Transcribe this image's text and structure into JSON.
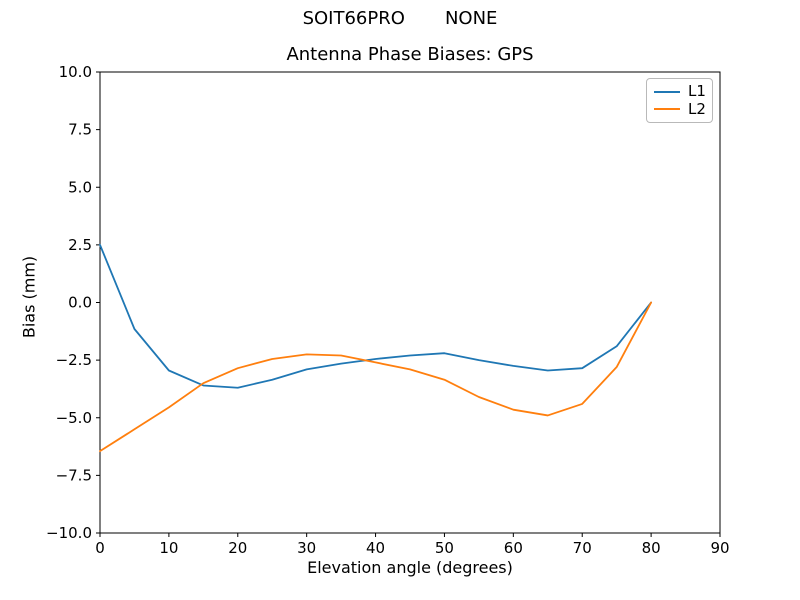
{
  "figure": {
    "suptitle": "SOIT66PRO       NONE",
    "background": "#ffffff",
    "text_color": "#000000"
  },
  "chart_data": {
    "type": "line",
    "title": "Antenna Phase Biases: GPS",
    "xlabel": "Elevation angle (degrees)",
    "ylabel": "Bias (mm)",
    "xlim": [
      0,
      90
    ],
    "ylim": [
      -10,
      10
    ],
    "grid": false,
    "legend_position": "upper right",
    "xticks": [
      0,
      10,
      20,
      30,
      40,
      50,
      60,
      70,
      80,
      90
    ],
    "xtick_labels": [
      "0",
      "10",
      "20",
      "30",
      "40",
      "50",
      "60",
      "70",
      "80",
      "90"
    ],
    "yticks": [
      10.0,
      7.5,
      5.0,
      2.5,
      0.0,
      -2.5,
      -5.0,
      -7.5,
      -10.0
    ],
    "ytick_labels": [
      "10.0",
      "7.5",
      "5.0",
      "2.5",
      "0.0",
      "−2.5",
      "−5.0",
      "−7.5",
      "−10.0"
    ],
    "x": [
      0,
      5,
      10,
      15,
      20,
      25,
      30,
      35,
      40,
      45,
      50,
      55,
      60,
      65,
      70,
      75,
      80
    ],
    "series": [
      {
        "name": "L1",
        "color": "#1f77b4",
        "values": [
          2.5,
          -1.15,
          -2.95,
          -3.6,
          -3.7,
          -3.35,
          -2.9,
          -2.65,
          -2.45,
          -2.3,
          -2.2,
          -2.5,
          -2.75,
          -2.95,
          -2.85,
          -1.9,
          0.0
        ]
      },
      {
        "name": "L2",
        "color": "#ff7f0e",
        "values": [
          -6.45,
          -5.5,
          -4.55,
          -3.5,
          -2.85,
          -2.45,
          -2.25,
          -2.3,
          -2.6,
          -2.9,
          -3.35,
          -4.1,
          -4.65,
          -4.9,
          -4.4,
          -2.8,
          0.0
        ]
      }
    ]
  }
}
